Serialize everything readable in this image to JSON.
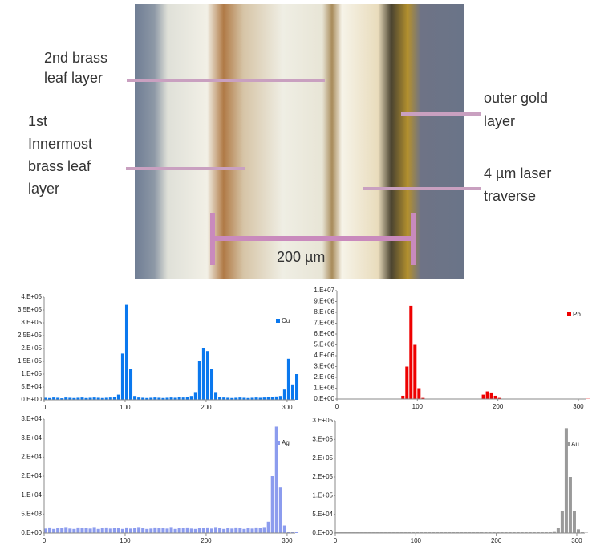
{
  "image": {
    "annotations": [
      {
        "lines": [
          "2nd brass",
          "leaf layer"
        ]
      },
      {
        "lines": [
          "1st",
          "Innermost",
          "brass leaf",
          "layer"
        ]
      },
      {
        "lines": [
          "outer gold",
          "layer"
        ]
      },
      {
        "lines": [
          "4 µm laser",
          "traverse"
        ]
      }
    ],
    "scale_label": "200 µm"
  },
  "chart_data": [
    {
      "type": "bar",
      "legend": "top-right",
      "x": [
        0,
        5,
        10,
        15,
        20,
        25,
        30,
        35,
        40,
        45,
        50,
        55,
        60,
        65,
        70,
        75,
        80,
        85,
        90,
        95,
        100,
        105,
        110,
        115,
        120,
        125,
        130,
        135,
        140,
        145,
        150,
        155,
        160,
        165,
        170,
        175,
        180,
        185,
        190,
        195,
        200,
        205,
        210,
        215,
        220,
        225,
        230,
        235,
        240,
        245,
        250,
        255,
        260,
        265,
        270,
        275,
        280,
        285,
        290,
        295,
        300,
        305,
        310
      ],
      "series": [
        {
          "name": "Cu",
          "color": "#0a78ee",
          "values": [
            8000,
            7000,
            9000,
            8000,
            6000,
            9000,
            8000,
            7000,
            8000,
            9000,
            7000,
            8000,
            9000,
            8000,
            7000,
            8000,
            9000,
            10000,
            20000,
            180000,
            370000,
            120000,
            15000,
            9000,
            8000,
            7000,
            8000,
            9000,
            8000,
            7000,
            8000,
            9000,
            8000,
            10000,
            9000,
            12000,
            15000,
            30000,
            150000,
            200000,
            190000,
            120000,
            30000,
            12000,
            9000,
            8000,
            7000,
            8000,
            9000,
            8000,
            7000,
            8000,
            9000,
            8000,
            9000,
            10000,
            12000,
            13000,
            15000,
            40000,
            160000,
            60000,
            100000
          ]
        }
      ],
      "xlim": [
        0,
        310
      ],
      "xticks": [
        0,
        100,
        200,
        300
      ],
      "ylim": [
        0,
        400000
      ],
      "yticks": [
        {
          "value": 0,
          "label": "0.E+00"
        },
        {
          "value": 50000,
          "label": "5.E+04"
        },
        {
          "value": 100000,
          "label": "1.E+05"
        },
        {
          "value": 150000,
          "label": "1.5E+05"
        },
        {
          "value": 200000,
          "label": "2.E+05"
        },
        {
          "value": 250000,
          "label": "2.5E+05"
        },
        {
          "value": 300000,
          "label": "3.E+05"
        },
        {
          "value": 350000,
          "label": "3.5E+05"
        },
        {
          "value": 400000,
          "label": "4.E+05"
        }
      ]
    },
    {
      "type": "bar",
      "legend": "top-right",
      "x": [
        0,
        5,
        10,
        15,
        20,
        25,
        30,
        35,
        40,
        45,
        50,
        55,
        60,
        65,
        70,
        75,
        80,
        85,
        90,
        95,
        100,
        105,
        110,
        115,
        120,
        125,
        130,
        135,
        140,
        145,
        150,
        155,
        160,
        165,
        170,
        175,
        180,
        185,
        190,
        195,
        200,
        205,
        210,
        215,
        220,
        225,
        230,
        235,
        240,
        245,
        250,
        255,
        260,
        265,
        270,
        275,
        280,
        285,
        290,
        295,
        300,
        305,
        310
      ],
      "series": [
        {
          "name": "Pb",
          "color": "#ee0000",
          "values": [
            20000,
            20000,
            20000,
            20000,
            20000,
            20000,
            20000,
            20000,
            20000,
            20000,
            20000,
            20000,
            20000,
            20000,
            20000,
            20000,
            300000,
            3000000,
            8600000,
            5000000,
            1000000,
            100000,
            20000,
            20000,
            20000,
            20000,
            20000,
            20000,
            20000,
            20000,
            20000,
            20000,
            20000,
            20000,
            20000,
            20000,
            400000,
            700000,
            600000,
            300000,
            100000,
            20000,
            20000,
            20000,
            20000,
            20000,
            20000,
            20000,
            20000,
            20000,
            20000,
            20000,
            20000,
            20000,
            20000,
            20000,
            20000,
            20000,
            20000,
            20000,
            20000,
            20000,
            20000
          ]
        }
      ],
      "xlim": [
        0,
        310
      ],
      "xticks": [
        0,
        100,
        200,
        300
      ],
      "ylim": [
        0,
        10000000
      ],
      "yticks": [
        {
          "value": 0,
          "label": "0.E+00"
        },
        {
          "value": 1000000,
          "label": "1.E+06"
        },
        {
          "value": 2000000,
          "label": "2.E+06"
        },
        {
          "value": 3000000,
          "label": "3.E+06"
        },
        {
          "value": 4000000,
          "label": "4.E+06"
        },
        {
          "value": 5000000,
          "label": "5.E+06"
        },
        {
          "value": 6000000,
          "label": "6.E+06"
        },
        {
          "value": 7000000,
          "label": "7.E+06"
        },
        {
          "value": 8000000,
          "label": "8.E+06"
        },
        {
          "value": 9000000,
          "label": "9.E+06"
        },
        {
          "value": 10000000,
          "label": "1.E+07"
        }
      ]
    },
    {
      "type": "bar",
      "legend": "top-right",
      "x": [
        0,
        5,
        10,
        15,
        20,
        25,
        30,
        35,
        40,
        45,
        50,
        55,
        60,
        65,
        70,
        75,
        80,
        85,
        90,
        95,
        100,
        105,
        110,
        115,
        120,
        125,
        130,
        135,
        140,
        145,
        150,
        155,
        160,
        165,
        170,
        175,
        180,
        185,
        190,
        195,
        200,
        205,
        210,
        215,
        220,
        225,
        230,
        235,
        240,
        245,
        250,
        255,
        260,
        265,
        270,
        275,
        280,
        285,
        290,
        295,
        300,
        305,
        310
      ],
      "series": [
        {
          "name": "Ag",
          "color": "#8c9cee",
          "values": [
            1200,
            1500,
            1100,
            1400,
            1300,
            1600,
            1200,
            1100,
            1500,
            1300,
            1400,
            1200,
            1600,
            1100,
            1300,
            1500,
            1200,
            1400,
            1300,
            1100,
            1500,
            1200,
            1400,
            1600,
            1300,
            1100,
            1200,
            1500,
            1400,
            1300,
            1200,
            1600,
            1100,
            1400,
            1300,
            1500,
            1200,
            1100,
            1400,
            1300,
            1500,
            1200,
            1600,
            1300,
            1100,
            1400,
            1200,
            1500,
            1300,
            1100,
            1400,
            1200,
            1500,
            1300,
            1600,
            3000,
            15000,
            28000,
            12000,
            2000,
            300,
            300,
            300
          ]
        }
      ],
      "xlim": [
        0,
        310
      ],
      "xticks": [
        0,
        100,
        200,
        300
      ],
      "ylim": [
        0,
        30000
      ],
      "yticks": [
        {
          "value": 0,
          "label": "0.E+00"
        },
        {
          "value": 5000,
          "label": "5.E+03"
        },
        {
          "value": 10000,
          "label": "1.E+04"
        },
        {
          "value": 15000,
          "label": "2.E+04"
        },
        {
          "value": 20000,
          "label": "2.E+04"
        },
        {
          "value": 25000,
          "label": "3.E+04"
        },
        {
          "value": 30000,
          "label": "3.E+04"
        }
      ]
    },
    {
      "type": "bar",
      "legend": "top-right",
      "x": [
        0,
        5,
        10,
        15,
        20,
        25,
        30,
        35,
        40,
        45,
        50,
        55,
        60,
        65,
        70,
        75,
        80,
        85,
        90,
        95,
        100,
        105,
        110,
        115,
        120,
        125,
        130,
        135,
        140,
        145,
        150,
        155,
        160,
        165,
        170,
        175,
        180,
        185,
        190,
        195,
        200,
        205,
        210,
        215,
        220,
        225,
        230,
        235,
        240,
        245,
        250,
        255,
        260,
        265,
        270,
        275,
        280,
        285,
        290,
        295,
        300,
        305,
        310
      ],
      "series": [
        {
          "name": "Au",
          "color": "#9a9a9a",
          "values": [
            2000,
            2000,
            2000,
            2000,
            2000,
            2000,
            2000,
            2000,
            2000,
            2000,
            2000,
            2000,
            2000,
            2000,
            2000,
            2000,
            2000,
            2000,
            2000,
            2000,
            2000,
            2000,
            2000,
            2000,
            2000,
            2000,
            2000,
            2000,
            2000,
            2000,
            2000,
            2000,
            2000,
            2000,
            2000,
            2000,
            2000,
            2000,
            2000,
            2000,
            2000,
            2000,
            2000,
            2000,
            2000,
            2000,
            2000,
            2000,
            2000,
            2000,
            2000,
            2000,
            2000,
            2000,
            5000,
            15000,
            60000,
            280000,
            150000,
            60000,
            10000,
            2000,
            1000
          ]
        }
      ],
      "xlim": [
        0,
        310
      ],
      "xticks": [
        0,
        100,
        200,
        300
      ],
      "ylim": [
        0,
        300000
      ],
      "yticks": [
        {
          "value": 0,
          "label": "0.E+00"
        },
        {
          "value": 50000,
          "label": "5.E+04"
        },
        {
          "value": 100000,
          "label": "1.E+05"
        },
        {
          "value": 150000,
          "label": "2.E+05"
        },
        {
          "value": 200000,
          "label": "2.E+05"
        },
        {
          "value": 250000,
          "label": "3.E+05"
        },
        {
          "value": 300000,
          "label": "3.E+05"
        }
      ]
    }
  ]
}
